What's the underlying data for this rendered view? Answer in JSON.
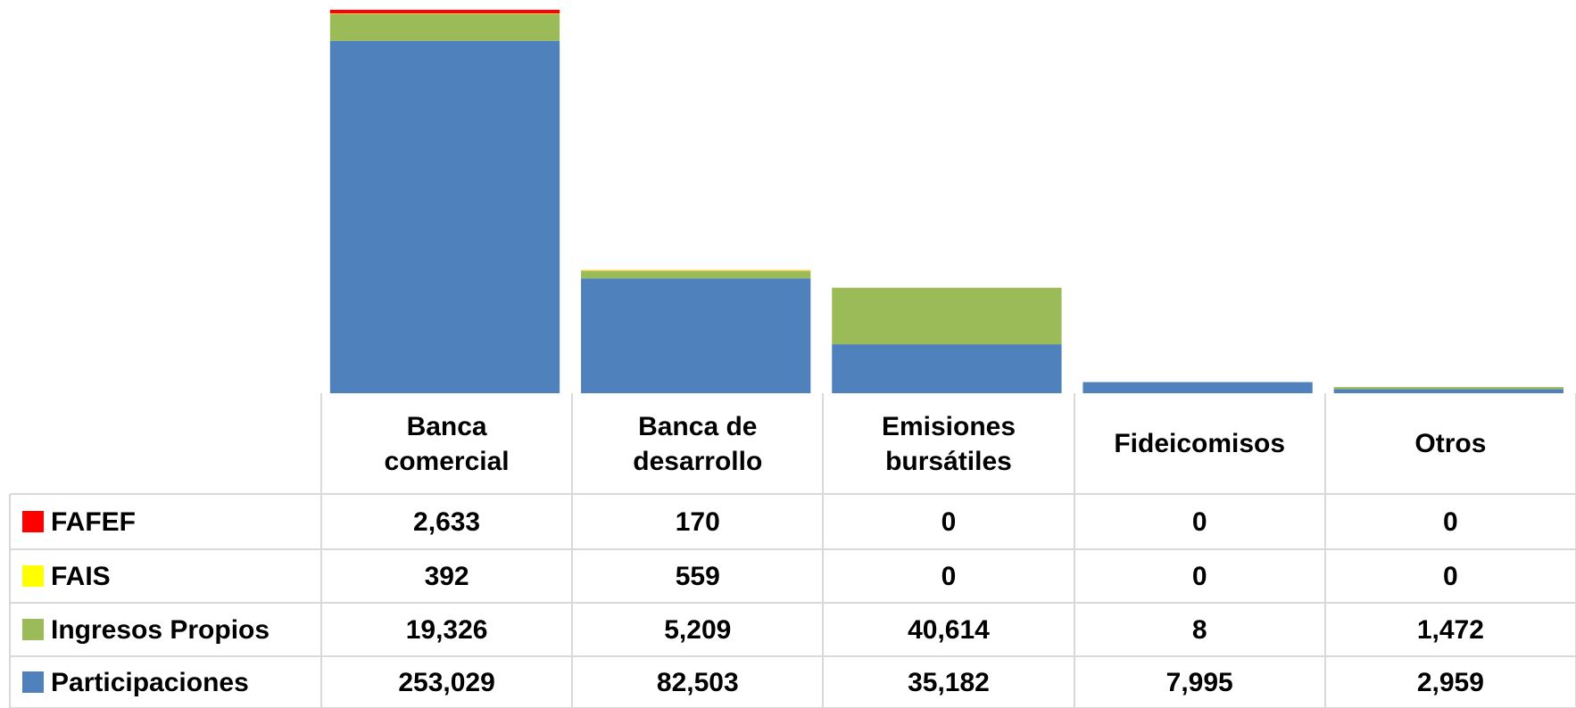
{
  "chart_data": {
    "type": "stacked_bar",
    "categories": [
      "Banca comercial",
      "Banca de desarrollo",
      "Emisiones bursátiles",
      "Fideicomisos",
      "Otros"
    ],
    "series": [
      {
        "name": "FAFEF",
        "color": "#ff0000",
        "values": [
          2633,
          170,
          0,
          0,
          0
        ],
        "value_labels": [
          "2,633",
          "170",
          "0",
          "0",
          "0"
        ]
      },
      {
        "name": "FAIS",
        "color": "#ffff00",
        "values": [
          392,
          559,
          0,
          0,
          0
        ],
        "value_labels": [
          "392",
          "559",
          "0",
          "0",
          "0"
        ]
      },
      {
        "name": "Ingresos Propios",
        "color": "#9bbb59",
        "values": [
          19326,
          5209,
          40614,
          8,
          1472
        ],
        "value_labels": [
          "19,326",
          "5,209",
          "40,614",
          "8",
          "1,472"
        ]
      },
      {
        "name": "Participaciones",
        "color": "#4f81bd",
        "values": [
          253029,
          82503,
          35182,
          7995,
          2959
        ],
        "value_labels": [
          "253,029",
          "82,503",
          "35,182",
          "7,995",
          "2,959"
        ]
      }
    ]
  }
}
